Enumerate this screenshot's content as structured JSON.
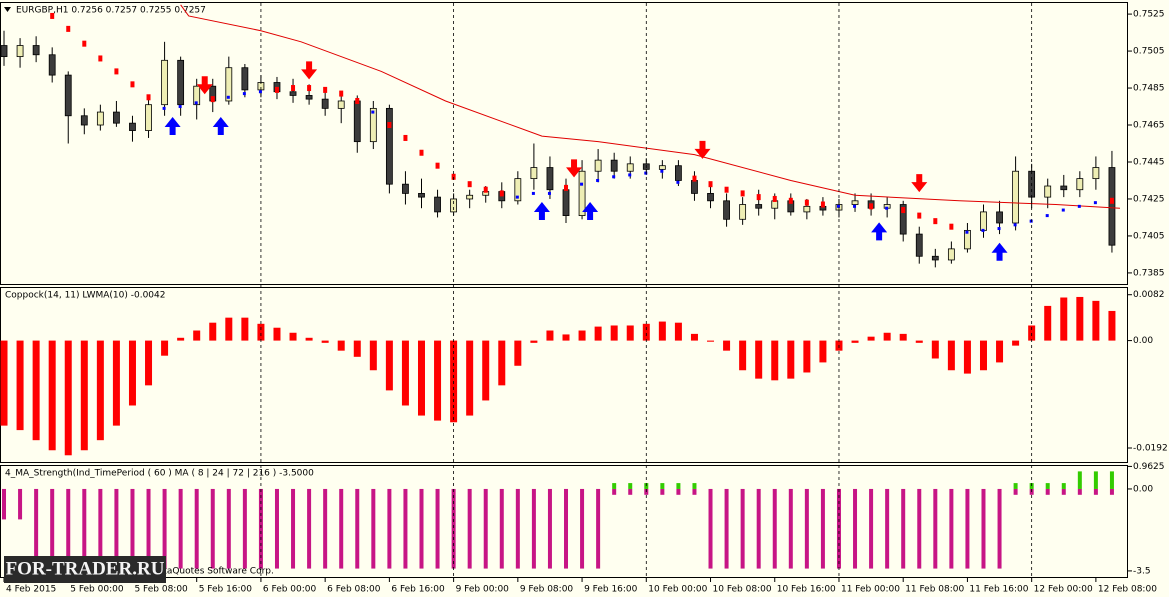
{
  "chart_data": [
    {
      "type": "candlestick",
      "title": "EURGBP,H1  0.7256 0.7257 0.7255 0.7257",
      "x": [
        0,
        2,
        4,
        6,
        8,
        10,
        12,
        14,
        16,
        18,
        20,
        22,
        24,
        26,
        28,
        30,
        32,
        34,
        36,
        38,
        40,
        42,
        44,
        46,
        48,
        50,
        52,
        54,
        56,
        58,
        60,
        62,
        64,
        66,
        68,
        70,
        72,
        74,
        76,
        78,
        80,
        82,
        84,
        86,
        88,
        90,
        92,
        94,
        96,
        98,
        100,
        102,
        104,
        106,
        108,
        110,
        112,
        114,
        116,
        118,
        120,
        122,
        124,
        126,
        128,
        130,
        132,
        134,
        136,
        138
      ],
      "open": [
        0.7508,
        0.7502,
        0.7508,
        0.7503,
        0.7492,
        0.747,
        0.7465,
        0.7472,
        0.7466,
        0.7462,
        0.7476,
        0.75,
        0.7476,
        0.7486,
        0.7478,
        0.7496,
        0.7484,
        0.7488,
        0.7483,
        0.7481,
        0.7479,
        0.7474,
        0.7478,
        0.7456,
        0.7474,
        0.7433,
        0.7428,
        0.7426,
        0.7418,
        0.7425,
        0.7427,
        0.7429,
        0.7424,
        0.7436,
        0.7442,
        0.743,
        0.7416,
        0.744,
        0.7446,
        0.744,
        0.7444,
        0.7441,
        0.7443,
        0.7435,
        0.7428,
        0.7424,
        0.7414,
        0.7422,
        0.742,
        0.7424,
        0.7418,
        0.7421,
        0.7419,
        0.7422,
        0.7424,
        0.742,
        0.7422,
        0.7406,
        0.7394,
        0.7392,
        0.7398,
        0.7408,
        0.7418,
        0.7412,
        0.744,
        0.7426,
        0.7432,
        0.743,
        0.7436,
        0.7442
      ],
      "high": [
        0.7516,
        0.7512,
        0.7513,
        0.7507,
        0.7494,
        0.7474,
        0.7476,
        0.7478,
        0.747,
        0.748,
        0.751,
        0.7502,
        0.749,
        0.749,
        0.7502,
        0.7498,
        0.7492,
        0.7491,
        0.749,
        0.7487,
        0.7484,
        0.7482,
        0.7481,
        0.7478,
        0.7476,
        0.744,
        0.7436,
        0.743,
        0.7428,
        0.743,
        0.7432,
        0.7434,
        0.744,
        0.7455,
        0.7448,
        0.7436,
        0.7446,
        0.7452,
        0.745,
        0.7448,
        0.7447,
        0.7446,
        0.7446,
        0.744,
        0.7434,
        0.7428,
        0.7426,
        0.743,
        0.7428,
        0.7428,
        0.7425,
        0.7426,
        0.7425,
        0.7428,
        0.7428,
        0.7426,
        0.7424,
        0.741,
        0.7398,
        0.7402,
        0.7412,
        0.7422,
        0.7424,
        0.7448,
        0.7444,
        0.7436,
        0.7438,
        0.744,
        0.7448,
        0.7451
      ],
      "low": [
        0.7497,
        0.7496,
        0.7499,
        0.7488,
        0.7455,
        0.746,
        0.7462,
        0.7464,
        0.7456,
        0.7458,
        0.747,
        0.747,
        0.7468,
        0.7472,
        0.7476,
        0.748,
        0.748,
        0.7479,
        0.7477,
        0.7476,
        0.747,
        0.7466,
        0.745,
        0.7452,
        0.7428,
        0.7422,
        0.742,
        0.7415,
        0.7416,
        0.742,
        0.7423,
        0.742,
        0.7422,
        0.743,
        0.7425,
        0.7412,
        0.7414,
        0.7434,
        0.7436,
        0.7436,
        0.7438,
        0.7436,
        0.7432,
        0.7424,
        0.742,
        0.741,
        0.7411,
        0.7416,
        0.7414,
        0.7416,
        0.7414,
        0.7416,
        0.7415,
        0.7418,
        0.7416,
        0.7415,
        0.7402,
        0.739,
        0.7388,
        0.739,
        0.7396,
        0.7404,
        0.7406,
        0.7408,
        0.742,
        0.742,
        0.7426,
        0.7426,
        0.743,
        0.7396
      ],
      "close": [
        0.7502,
        0.7508,
        0.7503,
        0.7492,
        0.747,
        0.7465,
        0.7472,
        0.7466,
        0.7462,
        0.7476,
        0.75,
        0.7476,
        0.7486,
        0.7478,
        0.7496,
        0.7484,
        0.7488,
        0.7483,
        0.7481,
        0.7479,
        0.7474,
        0.7478,
        0.7456,
        0.7474,
        0.7433,
        0.7428,
        0.7426,
        0.7418,
        0.7425,
        0.7427,
        0.7429,
        0.7424,
        0.7436,
        0.7442,
        0.743,
        0.7416,
        0.744,
        0.7446,
        0.744,
        0.7444,
        0.7441,
        0.7443,
        0.7435,
        0.7428,
        0.7424,
        0.7414,
        0.7422,
        0.742,
        0.7424,
        0.7418,
        0.7421,
        0.7419,
        0.7422,
        0.7424,
        0.742,
        0.7422,
        0.7406,
        0.7394,
        0.7392,
        0.7398,
        0.7408,
        0.7418,
        0.7412,
        0.744,
        0.7426,
        0.7432,
        0.743,
        0.7436,
        0.7442,
        0.74
      ],
      "bull_color": "#eeeeb4",
      "bear_color": "#3c3c3c",
      "wick_color": "#000000",
      "ma": {
        "color": "#e00000",
        "x": [
          22,
          23,
          32,
          37,
          47,
          55,
          67,
          74,
          86,
          98,
          106,
          119,
          131,
          139
        ],
        "values": [
          0.753,
          0.7524,
          0.7516,
          0.751,
          0.7494,
          0.7478,
          0.7459,
          0.7456,
          0.7449,
          0.7435,
          0.7427,
          0.7424,
          0.7422,
          0.742
        ]
      },
      "signal": {
        "up_color": "#0000ff",
        "down_color": "#ff0000",
        "values": [
          null,
          null,
          null,
          0.7524,
          0.7517,
          0.7509,
          0.7501,
          0.7494,
          0.7487,
          0.748,
          0.7474,
          0.7475,
          0.7477,
          0.7479,
          0.748,
          0.7482,
          0.7483,
          0.7484,
          0.7485,
          0.7485,
          0.7484,
          0.7482,
          0.7478,
          0.7472,
          0.7465,
          0.7458,
          0.745,
          0.7443,
          0.7437,
          0.7433,
          0.743,
          0.7428,
          0.7426,
          0.7428,
          0.7428,
          0.7431,
          0.7433,
          0.7435,
          0.7437,
          0.7438,
          0.7439,
          0.744,
          0.7434,
          0.7436,
          0.7433,
          0.743,
          0.7428,
          0.7426,
          0.7425,
          0.7424,
          0.7423,
          0.7422,
          0.7421,
          0.7421,
          0.7421,
          0.742,
          0.7419,
          0.7416,
          0.7413,
          0.741,
          0.7407,
          0.7408,
          0.7409,
          0.7411,
          0.7413,
          0.7416,
          0.7419,
          0.7421,
          0.7423,
          0.7424
        ]
      },
      "arrows_down": {
        "color": "#ff0000",
        "x": [
          25,
          38,
          71,
          87,
          114
        ],
        "values": [
          0.7486,
          0.7494,
          0.7441,
          0.7451,
          0.7433
        ]
      },
      "arrows_up": {
        "color": "#0000ff",
        "x": [
          21,
          27,
          67,
          73,
          109,
          124
        ],
        "values": [
          0.7465,
          0.7465,
          0.7419,
          0.7419,
          0.7408,
          0.7397
        ]
      },
      "ylim": [
        0.7379,
        0.7531
      ],
      "yticks": [
        0.7525,
        0.7505,
        0.7485,
        0.7465,
        0.7445,
        0.7425,
        0.7405,
        0.7385
      ]
    },
    {
      "type": "histogram",
      "title": "Coppock(14, 11) LWMA(10) -0.0042",
      "color": "#ff0000",
      "x": [
        0,
        2,
        4,
        6,
        8,
        10,
        12,
        14,
        16,
        18,
        20,
        22,
        24,
        26,
        28,
        30,
        32,
        34,
        36,
        38,
        40,
        42,
        44,
        46,
        48,
        50,
        52,
        54,
        56,
        58,
        60,
        62,
        64,
        66,
        68,
        70,
        72,
        74,
        76,
        78,
        80,
        82,
        84,
        86,
        88,
        90,
        92,
        94,
        96,
        98,
        100,
        102,
        104,
        106,
        108,
        110,
        112,
        114,
        116,
        118,
        120,
        122,
        124,
        126,
        128,
        130,
        132,
        134,
        136,
        138
      ],
      "values": [
        -0.0152,
        -0.016,
        -0.0178,
        -0.0196,
        -0.0205,
        -0.0196,
        -0.0178,
        -0.0152,
        -0.0116,
        -0.008,
        -0.0027,
        0.0005,
        0.0018,
        0.0032,
        0.0041,
        0.0041,
        0.003,
        0.0023,
        0.0014,
        0.0005,
        -0.0004,
        -0.0018,
        -0.0029,
        -0.0053,
        -0.0089,
        -0.0116,
        -0.0134,
        -0.0143,
        -0.0146,
        -0.0134,
        -0.0107,
        -0.008,
        -0.0045,
        -0.0004,
        0.0018,
        0.0011,
        0.0018,
        0.0025,
        0.0027,
        0.0027,
        0.003,
        0.0034,
        0.0032,
        0.0012,
        -0.0002,
        -0.0018,
        -0.0053,
        -0.0068,
        -0.0071,
        -0.0068,
        -0.0057,
        -0.0039,
        -0.0018,
        -0.0004,
        0.0007,
        0.0014,
        0.0012,
        -0.0004,
        -0.0032,
        -0.0053,
        -0.0059,
        -0.0053,
        -0.0039,
        -0.0009,
        0.0027,
        0.0062,
        0.0077,
        0.0078,
        0.0071,
        0.0053
      ],
      "ylim": [
        -0.0217,
        0.0094
      ],
      "yticks": [
        0.0082,
        {
          "value": 0,
          "label": "0.00"
        },
        -0.0192
      ]
    },
    {
      "type": "bar",
      "title": "4_MA_Strength(Ind_TimePeriod ( 60 ) MA ( 8 | 24 | 72 | 216 ) -3.5000",
      "x": [
        0,
        2,
        4,
        6,
        8,
        10,
        12,
        14,
        16,
        18,
        20,
        22,
        24,
        26,
        28,
        30,
        32,
        34,
        36,
        38,
        40,
        42,
        44,
        46,
        48,
        50,
        52,
        54,
        56,
        58,
        60,
        62,
        64,
        66,
        68,
        70,
        72,
        74,
        76,
        78,
        80,
        82,
        84,
        86,
        88,
        90,
        92,
        94,
        96,
        98,
        100,
        102,
        104,
        106,
        108,
        110,
        112,
        114,
        116,
        118,
        120,
        122,
        124,
        126,
        128,
        130,
        132,
        134,
        136,
        138
      ],
      "series": [
        {
          "color": "#c71585",
          "values": [
            -1.3,
            -1.3,
            -3.4,
            -3.4,
            -3.4,
            -3.4,
            -3.4,
            -3.4,
            -3.4,
            -3.4,
            -3.4,
            -3.4,
            -3.4,
            -3.4,
            -3.4,
            -3.4,
            -3.4,
            -3.4,
            -3.4,
            -3.4,
            -3.4,
            -3.4,
            -3.4,
            -3.4,
            -3.4,
            -3.4,
            -3.4,
            -3.4,
            -3.4,
            -3.4,
            -3.4,
            -3.4,
            -3.4,
            -3.4,
            -3.4,
            -3.4,
            -3.4,
            -3.4,
            -0.25,
            -0.25,
            -0.25,
            -0.25,
            -0.25,
            -0.25,
            -3.4,
            -3.4,
            -3.4,
            -3.4,
            -3.4,
            -3.4,
            -3.4,
            -3.4,
            -3.4,
            -3.4,
            -3.4,
            -3.4,
            -3.4,
            -3.4,
            -3.4,
            -3.4,
            -3.4,
            -3.4,
            -3.4,
            -0.25,
            -0.25,
            -0.25,
            -0.25,
            -0.25,
            -0.25,
            -0.25
          ]
        },
        {
          "color": "#33cc00",
          "values": [
            null,
            null,
            null,
            null,
            null,
            null,
            null,
            null,
            null,
            null,
            null,
            null,
            null,
            null,
            null,
            null,
            null,
            null,
            null,
            null,
            null,
            null,
            null,
            null,
            null,
            null,
            null,
            null,
            null,
            null,
            null,
            null,
            null,
            null,
            null,
            null,
            null,
            null,
            0.25,
            0.25,
            0.25,
            0.25,
            0.25,
            0.25,
            null,
            null,
            null,
            null,
            null,
            null,
            null,
            null,
            null,
            null,
            null,
            null,
            null,
            null,
            null,
            null,
            null,
            null,
            null,
            0.25,
            0.25,
            0.25,
            0.25,
            0.75,
            0.75,
            0.75
          ]
        }
      ],
      "ylim": [
        -3.76,
        0.98
      ],
      "yticks": [
        0.9625,
        {
          "value": 0,
          "label": "0.00"
        },
        -3.5
      ],
      "xlim": [
        -0.5,
        140
      ],
      "separators": [
        32,
        56,
        80,
        104,
        128
      ],
      "xticks": [
        {
          "value": 0,
          "label": "4 Feb 2015"
        },
        {
          "value": 8,
          "label": "5 Feb 00:00"
        },
        {
          "value": 16,
          "label": "5 Feb 08:00"
        },
        {
          "value": 24,
          "label": "5 Feb 16:00"
        },
        {
          "value": 32,
          "label": "6 Feb 00:00"
        },
        {
          "value": 40,
          "label": "6 Feb 08:00"
        },
        {
          "value": 48,
          "label": "6 Feb 16:00"
        },
        {
          "value": 56,
          "label": "9 Feb 00:00"
        },
        {
          "value": 64,
          "label": "9 Feb 08:00"
        },
        {
          "value": 72,
          "label": "9 Feb 16:00"
        },
        {
          "value": 80,
          "label": "10 Feb 00:00"
        },
        {
          "value": 88,
          "label": "10 Feb 08:00"
        },
        {
          "value": 96,
          "label": "10 Feb 16:00"
        },
        {
          "value": 104,
          "label": "11 Feb 00:00"
        },
        {
          "value": 112,
          "label": "11 Feb 08:00"
        },
        {
          "value": 120,
          "label": "11 Feb 16:00"
        },
        {
          "value": 128,
          "label": "12 Feb 00:00"
        },
        {
          "value": 136,
          "label": "12 Feb 08:00"
        }
      ]
    }
  ],
  "watermark": {
    "brand": "FOR-TRADER.RU",
    "copyright": "MetaQuotes Software Corp."
  }
}
